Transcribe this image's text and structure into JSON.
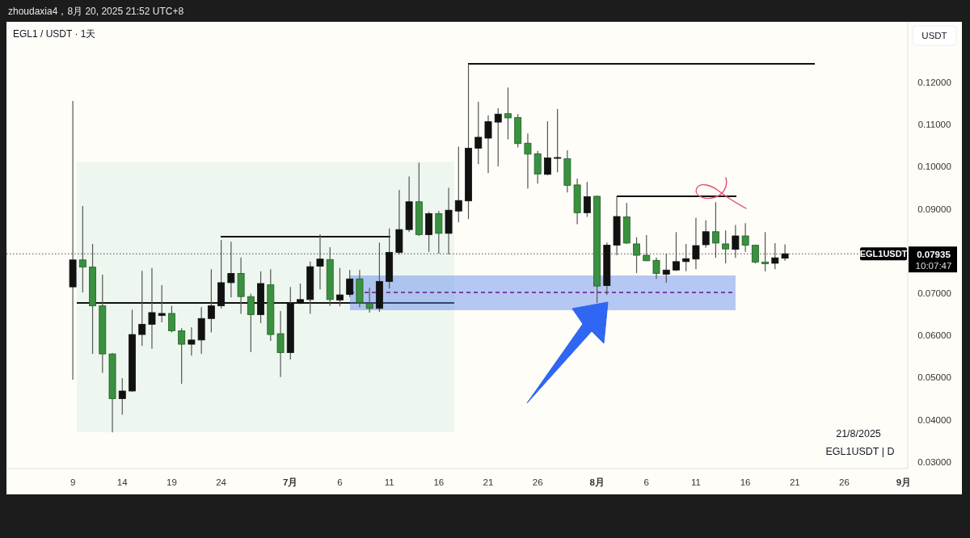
{
  "chart_data": {
    "type": "candlestick",
    "title": "EGL1 / USDT · 1天",
    "ylabel": "USDT",
    "x": [
      "2025-06-09",
      "2025-06-10",
      "2025-06-11",
      "2025-06-12",
      "2025-06-13",
      "2025-06-14",
      "2025-06-15",
      "2025-06-16",
      "2025-06-17",
      "2025-06-18",
      "2025-06-19",
      "2025-06-20",
      "2025-06-21",
      "2025-06-22",
      "2025-06-23",
      "2025-06-24",
      "2025-06-25",
      "2025-06-26",
      "2025-06-27",
      "2025-06-28",
      "2025-06-29",
      "2025-06-30",
      "2025-07-01",
      "2025-07-02",
      "2025-07-03",
      "2025-07-04",
      "2025-07-05",
      "2025-07-06",
      "2025-07-07",
      "2025-07-08",
      "2025-07-09",
      "2025-07-10",
      "2025-07-11",
      "2025-07-12",
      "2025-07-13",
      "2025-07-14",
      "2025-07-15",
      "2025-07-16",
      "2025-07-17",
      "2025-07-18",
      "2025-07-19",
      "2025-07-20",
      "2025-07-21",
      "2025-07-22",
      "2025-07-23",
      "2025-07-24",
      "2025-07-25",
      "2025-07-26",
      "2025-07-27",
      "2025-07-28",
      "2025-07-29",
      "2025-07-30",
      "2025-07-31",
      "2025-08-01",
      "2025-08-02",
      "2025-08-03",
      "2025-08-04",
      "2025-08-05",
      "2025-08-06",
      "2025-08-07",
      "2025-08-08",
      "2025-08-09",
      "2025-08-10",
      "2025-08-11",
      "2025-08-12",
      "2025-08-13",
      "2025-08-14",
      "2025-08-15",
      "2025-08-16",
      "2025-08-17",
      "2025-08-18",
      "2025-08-19",
      "2025-08-20"
    ],
    "ohlc": [
      [
        0.0715,
        0.1156,
        0.0495,
        0.0779
      ],
      [
        0.0779,
        0.0907,
        0.0702,
        0.0762
      ],
      [
        0.0762,
        0.0817,
        0.0556,
        0.067
      ],
      [
        0.067,
        0.0744,
        0.0511,
        0.0556
      ],
      [
        0.0556,
        0.0558,
        0.037,
        0.045
      ],
      [
        0.045,
        0.0498,
        0.0412,
        0.0468
      ],
      [
        0.0468,
        0.0661,
        0.0466,
        0.0602
      ],
      [
        0.0602,
        0.0753,
        0.0575,
        0.0626
      ],
      [
        0.0626,
        0.076,
        0.0568,
        0.0654
      ],
      [
        0.0647,
        0.0719,
        0.0631,
        0.0652
      ],
      [
        0.0652,
        0.067,
        0.0607,
        0.0611
      ],
      [
        0.0611,
        0.0617,
        0.0485,
        0.0579
      ],
      [
        0.0579,
        0.0619,
        0.0552,
        0.0589
      ],
      [
        0.0589,
        0.0667,
        0.0556,
        0.064
      ],
      [
        0.064,
        0.0757,
        0.0607,
        0.067
      ],
      [
        0.067,
        0.0826,
        0.0664,
        0.0725
      ],
      [
        0.0725,
        0.0822,
        0.069,
        0.0747
      ],
      [
        0.0747,
        0.0785,
        0.0651,
        0.0692
      ],
      [
        0.0692,
        0.0699,
        0.056,
        0.0649
      ],
      [
        0.0649,
        0.0752,
        0.0629,
        0.0723
      ],
      [
        0.072,
        0.0757,
        0.0587,
        0.0602
      ],
      [
        0.0604,
        0.0658,
        0.0501,
        0.0559
      ],
      [
        0.0559,
        0.0715,
        0.0543,
        0.0675
      ],
      [
        0.0676,
        0.0723,
        0.0674,
        0.0685
      ],
      [
        0.0685,
        0.0775,
        0.0651,
        0.0763
      ],
      [
        0.0764,
        0.084,
        0.0709,
        0.0781
      ],
      [
        0.078,
        0.0809,
        0.067,
        0.0685
      ],
      [
        0.0684,
        0.076,
        0.0669,
        0.0696
      ],
      [
        0.0697,
        0.0755,
        0.0691,
        0.0734
      ],
      [
        0.0734,
        0.0755,
        0.0667,
        0.0678
      ],
      [
        0.0676,
        0.0713,
        0.0654,
        0.0664
      ],
      [
        0.0664,
        0.082,
        0.0656,
        0.0728
      ],
      [
        0.0728,
        0.0854,
        0.0711,
        0.0797
      ],
      [
        0.0797,
        0.0945,
        0.0792,
        0.0851
      ],
      [
        0.0851,
        0.0977,
        0.0845,
        0.0917
      ],
      [
        0.0917,
        0.101,
        0.0836,
        0.0839
      ],
      [
        0.0839,
        0.0893,
        0.0798,
        0.0889
      ],
      [
        0.0889,
        0.0895,
        0.0794,
        0.0842
      ],
      [
        0.0842,
        0.095,
        0.0792,
        0.0897
      ],
      [
        0.0895,
        0.1048,
        0.0868,
        0.092
      ],
      [
        0.0919,
        0.1243,
        0.0876,
        0.1044
      ],
      [
        0.1044,
        0.1154,
        0.1006,
        0.107
      ],
      [
        0.1068,
        0.1122,
        0.0985,
        0.1107
      ],
      [
        0.1106,
        0.1139,
        0.1001,
        0.1125
      ],
      [
        0.1126,
        0.1188,
        0.1065,
        0.1116
      ],
      [
        0.1117,
        0.1125,
        0.1046,
        0.1055
      ],
      [
        0.1056,
        0.1079,
        0.0948,
        0.103
      ],
      [
        0.1031,
        0.1038,
        0.096,
        0.0983
      ],
      [
        0.0982,
        0.1108,
        0.098,
        0.1021
      ],
      [
        0.102,
        0.1137,
        0.0987,
        0.1022
      ],
      [
        0.1019,
        0.1039,
        0.0939,
        0.0956
      ],
      [
        0.0957,
        0.0972,
        0.0864,
        0.0891
      ],
      [
        0.0891,
        0.0964,
        0.0881,
        0.0929
      ],
      [
        0.093,
        0.0932,
        0.0677,
        0.0717
      ],
      [
        0.0718,
        0.082,
        0.0696,
        0.0814
      ],
      [
        0.0814,
        0.0931,
        0.079,
        0.0882
      ],
      [
        0.0881,
        0.0914,
        0.0817,
        0.0819
      ],
      [
        0.0817,
        0.0833,
        0.0748,
        0.079
      ],
      [
        0.079,
        0.0838,
        0.0776,
        0.0777
      ],
      [
        0.0778,
        0.0785,
        0.0734,
        0.0747
      ],
      [
        0.0745,
        0.0794,
        0.0725,
        0.0755
      ],
      [
        0.0755,
        0.0845,
        0.0753,
        0.0775
      ],
      [
        0.0775,
        0.0817,
        0.0752,
        0.0782
      ],
      [
        0.0781,
        0.0879,
        0.0757,
        0.0813
      ],
      [
        0.0815,
        0.0873,
        0.0808,
        0.0846
      ],
      [
        0.0846,
        0.0916,
        0.0784,
        0.0819
      ],
      [
        0.0817,
        0.0849,
        0.0771,
        0.0805
      ],
      [
        0.0804,
        0.0862,
        0.0784,
        0.0836
      ],
      [
        0.0836,
        0.0866,
        0.0798,
        0.0814
      ],
      [
        0.0814,
        0.0815,
        0.0771,
        0.0774
      ],
      [
        0.0774,
        0.0845,
        0.0752,
        0.077
      ],
      [
        0.0771,
        0.0819,
        0.0757,
        0.0784
      ],
      [
        0.0783,
        0.0816,
        0.0777,
        0.07935
      ]
    ],
    "colors": [
      "#111111",
      "#3a913f",
      "#3a913f",
      "#3a913f",
      "#3a913f",
      "#111111",
      "#111111",
      "#111111",
      "#111111",
      "#111111",
      "#3a913f",
      "#3a913f",
      "#111111",
      "#111111",
      "#111111",
      "#111111",
      "#111111",
      "#3a913f",
      "#3a913f",
      "#111111",
      "#3a913f",
      "#3a913f",
      "#111111",
      "#111111",
      "#111111",
      "#111111",
      "#3a913f",
      "#111111",
      "#111111",
      "#3a913f",
      "#3a913f",
      "#111111",
      "#111111",
      "#111111",
      "#111111",
      "#3a913f",
      "#111111",
      "#3a913f",
      "#111111",
      "#111111",
      "#111111",
      "#111111",
      "#111111",
      "#111111",
      "#3a913f",
      "#3a913f",
      "#3a913f",
      "#3a913f",
      "#111111",
      "#111111",
      "#3a913f",
      "#3a913f",
      "#111111",
      "#3a913f",
      "#111111",
      "#111111",
      "#3a913f",
      "#3a913f",
      "#3a913f",
      "#3a913f",
      "#111111",
      "#111111",
      "#111111",
      "#111111",
      "#111111",
      "#3a913f",
      "#3a913f",
      "#111111",
      "#3a913f",
      "#3a913f",
      "#3a913f",
      "#111111",
      "#111111"
    ],
    "xlim": [
      "2025-06-02T07:00",
      "2025-09-01T10:00"
    ],
    "xticks": [
      {
        "value": "2025-06-09",
        "label": "9"
      },
      {
        "value": "2025-06-14",
        "label": "14"
      },
      {
        "value": "2025-06-19",
        "label": "19"
      },
      {
        "value": "2025-06-24",
        "label": "24"
      },
      {
        "value": "2025-07-01",
        "label": "7月"
      },
      {
        "value": "2025-07-06",
        "label": "6"
      },
      {
        "value": "2025-07-11",
        "label": "11"
      },
      {
        "value": "2025-07-16",
        "label": "16"
      },
      {
        "value": "2025-07-21",
        "label": "21"
      },
      {
        "value": "2025-07-26",
        "label": "26"
      },
      {
        "value": "2025-08-01",
        "label": "8月"
      },
      {
        "value": "2025-08-06",
        "label": "6"
      },
      {
        "value": "2025-08-11",
        "label": "11"
      },
      {
        "value": "2025-08-16",
        "label": "16"
      },
      {
        "value": "2025-08-21",
        "label": "21"
      },
      {
        "value": "2025-08-26",
        "label": "26"
      },
      {
        "value": "2025-09-01",
        "label": "9月"
      }
    ],
    "ylim": [
      0.0284,
      0.1344
    ],
    "yticks": [
      {
        "value": 0.03,
        "label": "0.03000"
      },
      {
        "value": 0.04,
        "label": "0.04000"
      },
      {
        "value": 0.05,
        "label": "0.05000"
      },
      {
        "value": 0.06,
        "label": "0.06000"
      },
      {
        "value": 0.07,
        "label": "0.07000"
      },
      {
        "value": 0.09,
        "label": "0.09000"
      },
      {
        "value": 0.1,
        "label": "0.10000"
      },
      {
        "value": 0.11,
        "label": "0.11000"
      },
      {
        "value": 0.12,
        "label": "0.12000"
      }
    ],
    "ref_lines": [
      {
        "axis": "y",
        "value": 0.07935,
        "label": "EGL1USDT",
        "line_style": "dotted",
        "color": "#000000"
      }
    ],
    "annotations": [
      "zhoudaxia4，8月 20, 2025 21:52 UTC+8",
      "0.07935",
      "10:07:47",
      "21/8/2025",
      "EGL1USDT | D"
    ]
  }
}
